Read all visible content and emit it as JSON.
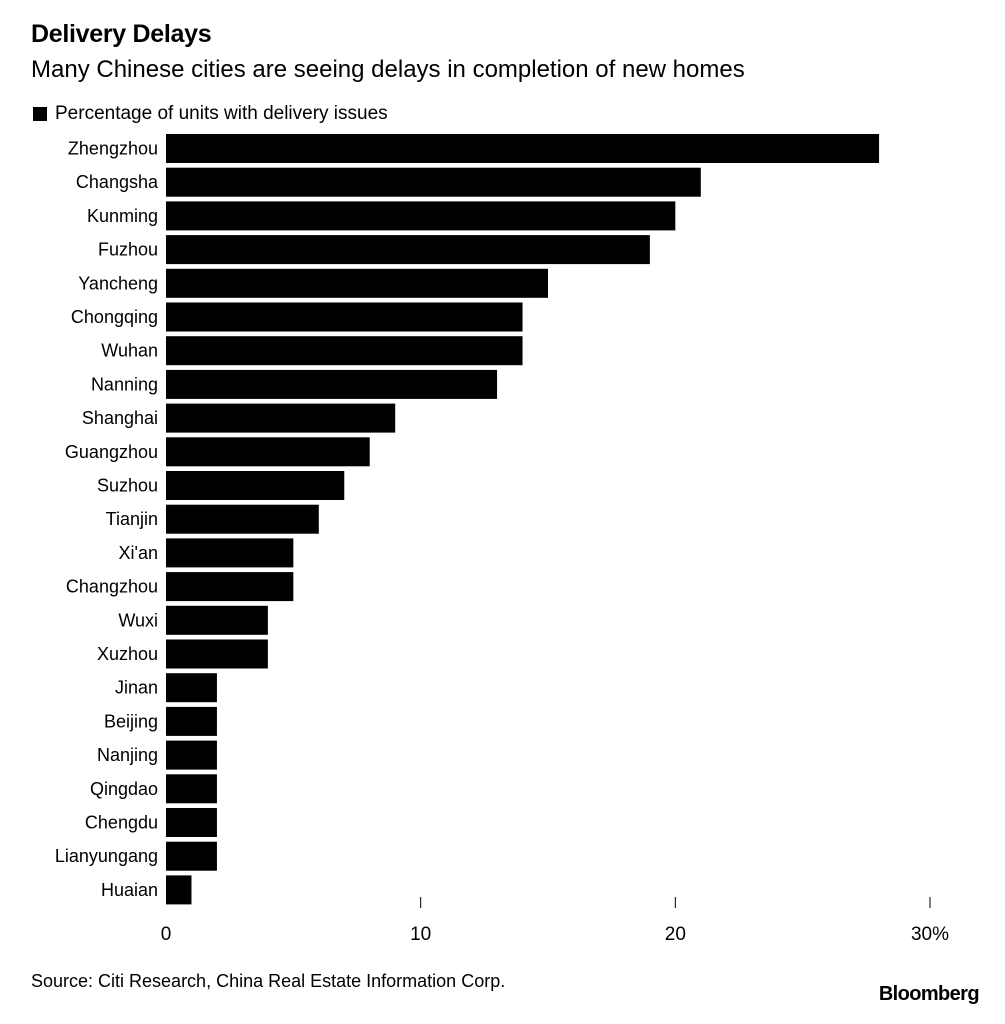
{
  "header": {
    "title": "Delivery Delays",
    "subtitle": "Many Chinese cities are seeing delays in completion of new homes"
  },
  "legend": {
    "label": "Percentage of units with delivery issues",
    "color": "#000000"
  },
  "footer": {
    "source": "Source: Citi Research, China Real Estate Information Corp.",
    "brand": "Bloomberg"
  },
  "chart_data": {
    "type": "bar",
    "orientation": "horizontal",
    "categories": [
      "Zhengzhou",
      "Changsha",
      "Kunming",
      "Fuzhou",
      "Yancheng",
      "Chongqing",
      "Wuhan",
      "Nanning",
      "Shanghai",
      "Guangzhou",
      "Suzhou",
      "Tianjin",
      "Xi'an",
      "Changzhou",
      "Wuxi",
      "Xuzhou",
      "Jinan",
      "Beijing",
      "Nanjing",
      "Qingdao",
      "Chengdu",
      "Lianyungang",
      "Huaian"
    ],
    "series": [
      {
        "name": "Percentage of units with delivery issues",
        "values": [
          28,
          21,
          20,
          19,
          15,
          14,
          14,
          13,
          9,
          8,
          7,
          6,
          5,
          5,
          4,
          4,
          2,
          2,
          2,
          2,
          2,
          2,
          1
        ]
      }
    ],
    "xlim": [
      0,
      30
    ],
    "xticks": [
      0,
      10,
      20,
      30
    ],
    "xtick_labels": [
      "0",
      "10",
      "20",
      "30%"
    ],
    "bar_color": "#000000",
    "grid": false,
    "legend_position": "top-left"
  }
}
